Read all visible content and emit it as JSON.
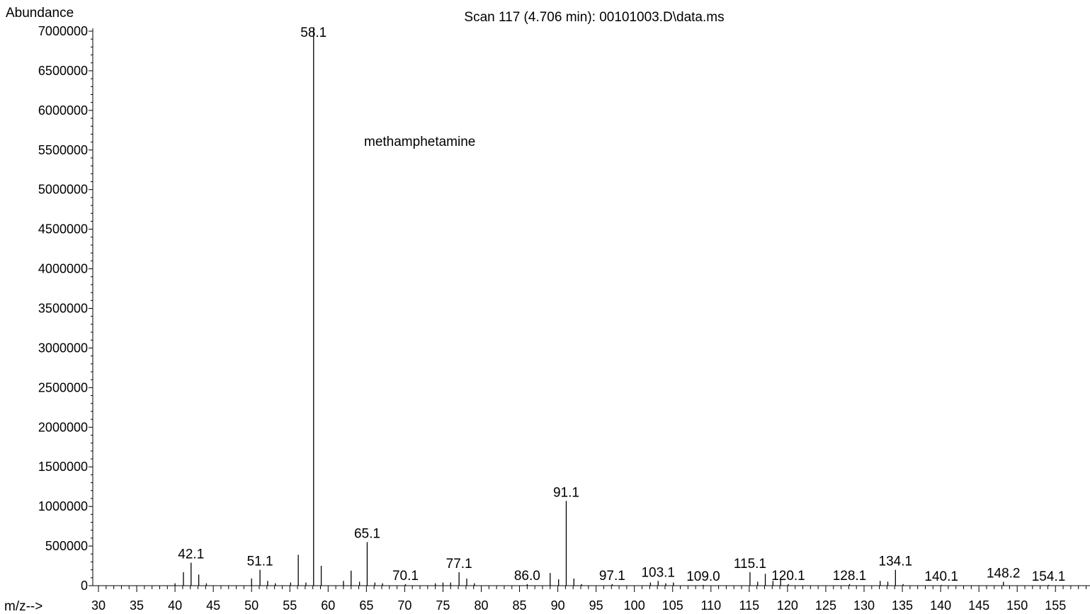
{
  "chart_data": {
    "type": "bar",
    "title": "Scan 117 (4.706 min): 00101003.D\\data.ms",
    "ylabel": "Abundance",
    "xlabel": "m/z-->",
    "annotation": "methamphetamine",
    "xlim": [
      30,
      159
    ],
    "ylim": [
      0,
      7050000
    ],
    "x_ticks": [
      30,
      35,
      40,
      45,
      50,
      55,
      60,
      65,
      70,
      75,
      80,
      85,
      90,
      95,
      100,
      105,
      110,
      115,
      120,
      125,
      130,
      135,
      140,
      145,
      150,
      155
    ],
    "y_ticks": [
      0,
      500000,
      1000000,
      1500000,
      2000000,
      2500000,
      3000000,
      3500000,
      4000000,
      4500000,
      5000000,
      5500000,
      6000000,
      6500000,
      7000000
    ],
    "grid": false,
    "peaks": [
      {
        "mz": 40.0,
        "abundance": 30000
      },
      {
        "mz": 41.1,
        "abundance": 170000
      },
      {
        "mz": 42.1,
        "abundance": 290000,
        "label": "42.1"
      },
      {
        "mz": 43.1,
        "abundance": 140000
      },
      {
        "mz": 44.1,
        "abundance": 30000
      },
      {
        "mz": 50.0,
        "abundance": 90000
      },
      {
        "mz": 51.1,
        "abundance": 200000,
        "label": "51.1"
      },
      {
        "mz": 52.1,
        "abundance": 60000
      },
      {
        "mz": 53.1,
        "abundance": 30000
      },
      {
        "mz": 55.1,
        "abundance": 40000
      },
      {
        "mz": 56.1,
        "abundance": 390000
      },
      {
        "mz": 57.1,
        "abundance": 40000
      },
      {
        "mz": 58.1,
        "abundance": 7050000,
        "label": "58.1"
      },
      {
        "mz": 59.1,
        "abundance": 250000
      },
      {
        "mz": 62.0,
        "abundance": 60000
      },
      {
        "mz": 63.0,
        "abundance": 190000
      },
      {
        "mz": 64.1,
        "abundance": 50000
      },
      {
        "mz": 65.1,
        "abundance": 550000,
        "label": "65.1"
      },
      {
        "mz": 66.1,
        "abundance": 40000
      },
      {
        "mz": 67.1,
        "abundance": 30000
      },
      {
        "mz": 70.1,
        "abundance": 20000,
        "label": "70.1"
      },
      {
        "mz": 74.0,
        "abundance": 30000
      },
      {
        "mz": 75.0,
        "abundance": 40000
      },
      {
        "mz": 76.0,
        "abundance": 40000
      },
      {
        "mz": 77.1,
        "abundance": 170000,
        "label": "77.1"
      },
      {
        "mz": 78.1,
        "abundance": 90000
      },
      {
        "mz": 79.1,
        "abundance": 30000
      },
      {
        "mz": 86.0,
        "abundance": 20000,
        "label": "86.0"
      },
      {
        "mz": 89.0,
        "abundance": 160000
      },
      {
        "mz": 90.1,
        "abundance": 80000
      },
      {
        "mz": 91.1,
        "abundance": 1070000,
        "label": "91.1"
      },
      {
        "mz": 92.1,
        "abundance": 90000
      },
      {
        "mz": 93.1,
        "abundance": 20000
      },
      {
        "mz": 97.1,
        "abundance": 20000,
        "label": "97.1"
      },
      {
        "mz": 102.1,
        "abundance": 40000
      },
      {
        "mz": 103.1,
        "abundance": 60000,
        "label": "103.1"
      },
      {
        "mz": 104.1,
        "abundance": 30000
      },
      {
        "mz": 105.1,
        "abundance": 40000
      },
      {
        "mz": 109.0,
        "abundance": 10000,
        "label": "109.0"
      },
      {
        "mz": 115.1,
        "abundance": 170000,
        "label": "115.1"
      },
      {
        "mz": 116.1,
        "abundance": 50000
      },
      {
        "mz": 117.1,
        "abundance": 150000
      },
      {
        "mz": 118.1,
        "abundance": 60000
      },
      {
        "mz": 119.1,
        "abundance": 80000
      },
      {
        "mz": 120.1,
        "abundance": 20000,
        "label": "120.1"
      },
      {
        "mz": 128.1,
        "abundance": 20000,
        "label": "128.1"
      },
      {
        "mz": 132.1,
        "abundance": 60000
      },
      {
        "mz": 133.1,
        "abundance": 50000
      },
      {
        "mz": 134.1,
        "abundance": 200000,
        "label": "134.1"
      },
      {
        "mz": 135.1,
        "abundance": 20000
      },
      {
        "mz": 140.1,
        "abundance": 10000,
        "label": "140.1"
      },
      {
        "mz": 148.2,
        "abundance": 50000,
        "label": "148.2"
      },
      {
        "mz": 154.1,
        "abundance": 10000,
        "label": "154.1"
      }
    ]
  }
}
